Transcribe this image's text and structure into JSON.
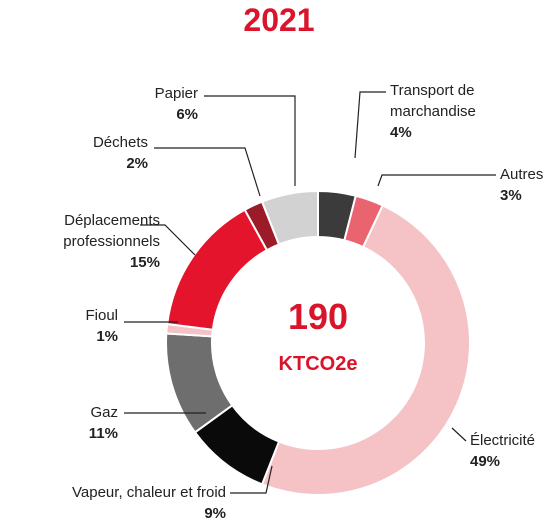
{
  "chart_data": {
    "type": "donut",
    "title": "2021",
    "annotations": [
      "190",
      "KTCO2e"
    ],
    "categories": [
      "Transport de marchandise",
      "Autres",
      "Électricité",
      "Vapeur, chaleur et froid",
      "Gaz",
      "Fioul",
      "Déplacements professionnels",
      "Déchets",
      "Papier"
    ],
    "values": [
      4,
      3,
      49,
      9,
      11,
      1,
      15,
      2,
      6
    ],
    "value_labels": [
      "4%",
      "3%",
      "49%",
      "9%",
      "11%",
      "1%",
      "15%",
      "2%",
      "6%"
    ],
    "colors": [
      "#3b3b3b",
      "#ea6470",
      "#f5c2c6",
      "#0a0a0a",
      "#6e6e6e",
      "#f5c2c6",
      "#e3142c",
      "#9b1b29",
      "#d2d2d2"
    ]
  }
}
